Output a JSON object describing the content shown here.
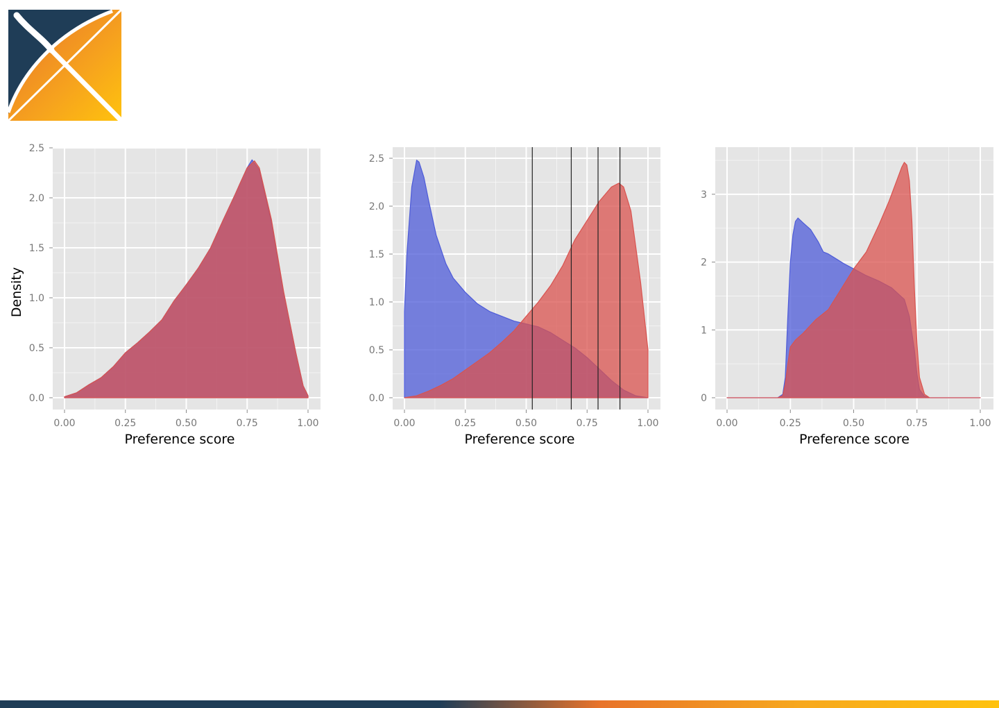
{
  "logo": {
    "name": "x-logo-icon",
    "colors": {
      "navy": "#1f3d57",
      "orange": "#ef8a22",
      "yellow": "#ffc20e"
    }
  },
  "colors": {
    "blue": "#4d5bd8",
    "red": "#d9534f",
    "overlap": "#662f9b",
    "panel_bg": "#e5e5e5",
    "grid": "#ffffff"
  },
  "chart_data": [
    {
      "type": "area",
      "xlabel": "Preference score",
      "ylabel": "Density",
      "xlim": [
        0,
        1
      ],
      "ylim": [
        0,
        2.5
      ],
      "x_ticks": [
        "0.00",
        "0.25",
        "0.50",
        "0.75",
        "1.00"
      ],
      "y_ticks": [
        "0.0",
        "0.5",
        "1.0",
        "1.5",
        "2.0",
        "2.5"
      ],
      "grid": true,
      "vlines": [],
      "series": [
        {
          "color": "blue",
          "x": [
            0,
            0.05,
            0.1,
            0.15,
            0.2,
            0.25,
            0.3,
            0.35,
            0.4,
            0.45,
            0.5,
            0.55,
            0.6,
            0.65,
            0.7,
            0.72,
            0.75,
            0.77,
            0.8,
            0.85,
            0.9,
            0.95,
            0.98,
            1.0
          ],
          "y": [
            0.01,
            0.05,
            0.13,
            0.2,
            0.31,
            0.45,
            0.55,
            0.66,
            0.78,
            0.97,
            1.13,
            1.3,
            1.5,
            1.77,
            2.03,
            2.14,
            2.3,
            2.38,
            2.28,
            1.75,
            1.05,
            0.45,
            0.12,
            0.02
          ]
        },
        {
          "color": "red",
          "x": [
            0,
            0.05,
            0.1,
            0.15,
            0.2,
            0.25,
            0.3,
            0.35,
            0.4,
            0.45,
            0.5,
            0.55,
            0.6,
            0.65,
            0.7,
            0.72,
            0.75,
            0.78,
            0.8,
            0.85,
            0.9,
            0.95,
            0.98,
            1.0
          ],
          "y": [
            0.01,
            0.05,
            0.13,
            0.2,
            0.31,
            0.45,
            0.55,
            0.66,
            0.78,
            0.97,
            1.13,
            1.3,
            1.5,
            1.77,
            2.03,
            2.14,
            2.3,
            2.37,
            2.3,
            1.78,
            1.06,
            0.45,
            0.12,
            0.02
          ]
        }
      ]
    },
    {
      "type": "area",
      "xlabel": "Preference score",
      "ylabel": "",
      "xlim": [
        0,
        1
      ],
      "ylim": [
        0,
        2.5
      ],
      "x_ticks": [
        "0.00",
        "0.25",
        "0.50",
        "0.75",
        "1.00"
      ],
      "y_ticks": [
        "0.0",
        "0.5",
        "1.0",
        "1.5",
        "2.0",
        "2.5"
      ],
      "grid": true,
      "vlines": [
        0.525,
        0.685,
        0.795,
        0.885
      ],
      "series": [
        {
          "color": "blue",
          "x": [
            0,
            0.01,
            0.03,
            0.05,
            0.06,
            0.08,
            0.1,
            0.13,
            0.17,
            0.2,
            0.25,
            0.3,
            0.35,
            0.4,
            0.45,
            0.5,
            0.55,
            0.6,
            0.65,
            0.7,
            0.75,
            0.8,
            0.85,
            0.9,
            0.95,
            1.0
          ],
          "y": [
            0.9,
            1.5,
            2.2,
            2.48,
            2.46,
            2.3,
            2.05,
            1.7,
            1.4,
            1.25,
            1.1,
            0.98,
            0.9,
            0.85,
            0.8,
            0.77,
            0.74,
            0.68,
            0.6,
            0.52,
            0.42,
            0.3,
            0.18,
            0.08,
            0.02,
            0.0
          ]
        },
        {
          "color": "red",
          "x": [
            0,
            0.05,
            0.1,
            0.15,
            0.2,
            0.25,
            0.3,
            0.35,
            0.4,
            0.45,
            0.5,
            0.55,
            0.6,
            0.65,
            0.7,
            0.75,
            0.8,
            0.85,
            0.88,
            0.9,
            0.93,
            0.97,
            1.0
          ],
          "y": [
            0.0,
            0.02,
            0.07,
            0.13,
            0.2,
            0.29,
            0.38,
            0.47,
            0.58,
            0.7,
            0.85,
            1.0,
            1.17,
            1.38,
            1.65,
            1.85,
            2.05,
            2.2,
            2.24,
            2.2,
            1.95,
            1.2,
            0.5
          ]
        }
      ]
    },
    {
      "type": "area",
      "xlabel": "Preference score",
      "ylabel": "",
      "xlim": [
        0,
        1
      ],
      "ylim": [
        0,
        3.5
      ],
      "x_ticks": [
        "0.00",
        "0.25",
        "0.50",
        "0.75",
        "1.00"
      ],
      "y_ticks": [
        "0",
        "1",
        "2",
        "3"
      ],
      "grid": true,
      "vlines": [],
      "series": [
        {
          "color": "blue",
          "x": [
            0,
            0.2,
            0.22,
            0.23,
            0.24,
            0.25,
            0.26,
            0.27,
            0.28,
            0.3,
            0.33,
            0.36,
            0.38,
            0.4,
            0.43,
            0.46,
            0.5,
            0.55,
            0.6,
            0.65,
            0.7,
            0.72,
            0.74,
            0.75,
            0.76,
            0.78,
            0.8,
            1.0
          ],
          "y": [
            0,
            0,
            0.05,
            0.3,
            1.2,
            2.0,
            2.4,
            2.6,
            2.65,
            2.58,
            2.48,
            2.3,
            2.15,
            2.12,
            2.05,
            1.98,
            1.9,
            1.8,
            1.72,
            1.62,
            1.45,
            1.2,
            0.7,
            0.35,
            0.12,
            0.02,
            0,
            0
          ]
        },
        {
          "color": "red",
          "x": [
            0,
            0.2,
            0.22,
            0.23,
            0.24,
            0.25,
            0.27,
            0.3,
            0.35,
            0.4,
            0.45,
            0.5,
            0.55,
            0.6,
            0.64,
            0.67,
            0.69,
            0.7,
            0.71,
            0.72,
            0.73,
            0.74,
            0.75,
            0.76,
            0.78,
            0.8,
            1.0
          ],
          "y": [
            0,
            0,
            0.03,
            0.2,
            0.5,
            0.75,
            0.85,
            0.95,
            1.15,
            1.3,
            1.6,
            1.9,
            2.15,
            2.55,
            2.9,
            3.2,
            3.4,
            3.47,
            3.43,
            3.2,
            2.6,
            1.6,
            0.8,
            0.3,
            0.05,
            0,
            0
          ]
        }
      ]
    }
  ]
}
